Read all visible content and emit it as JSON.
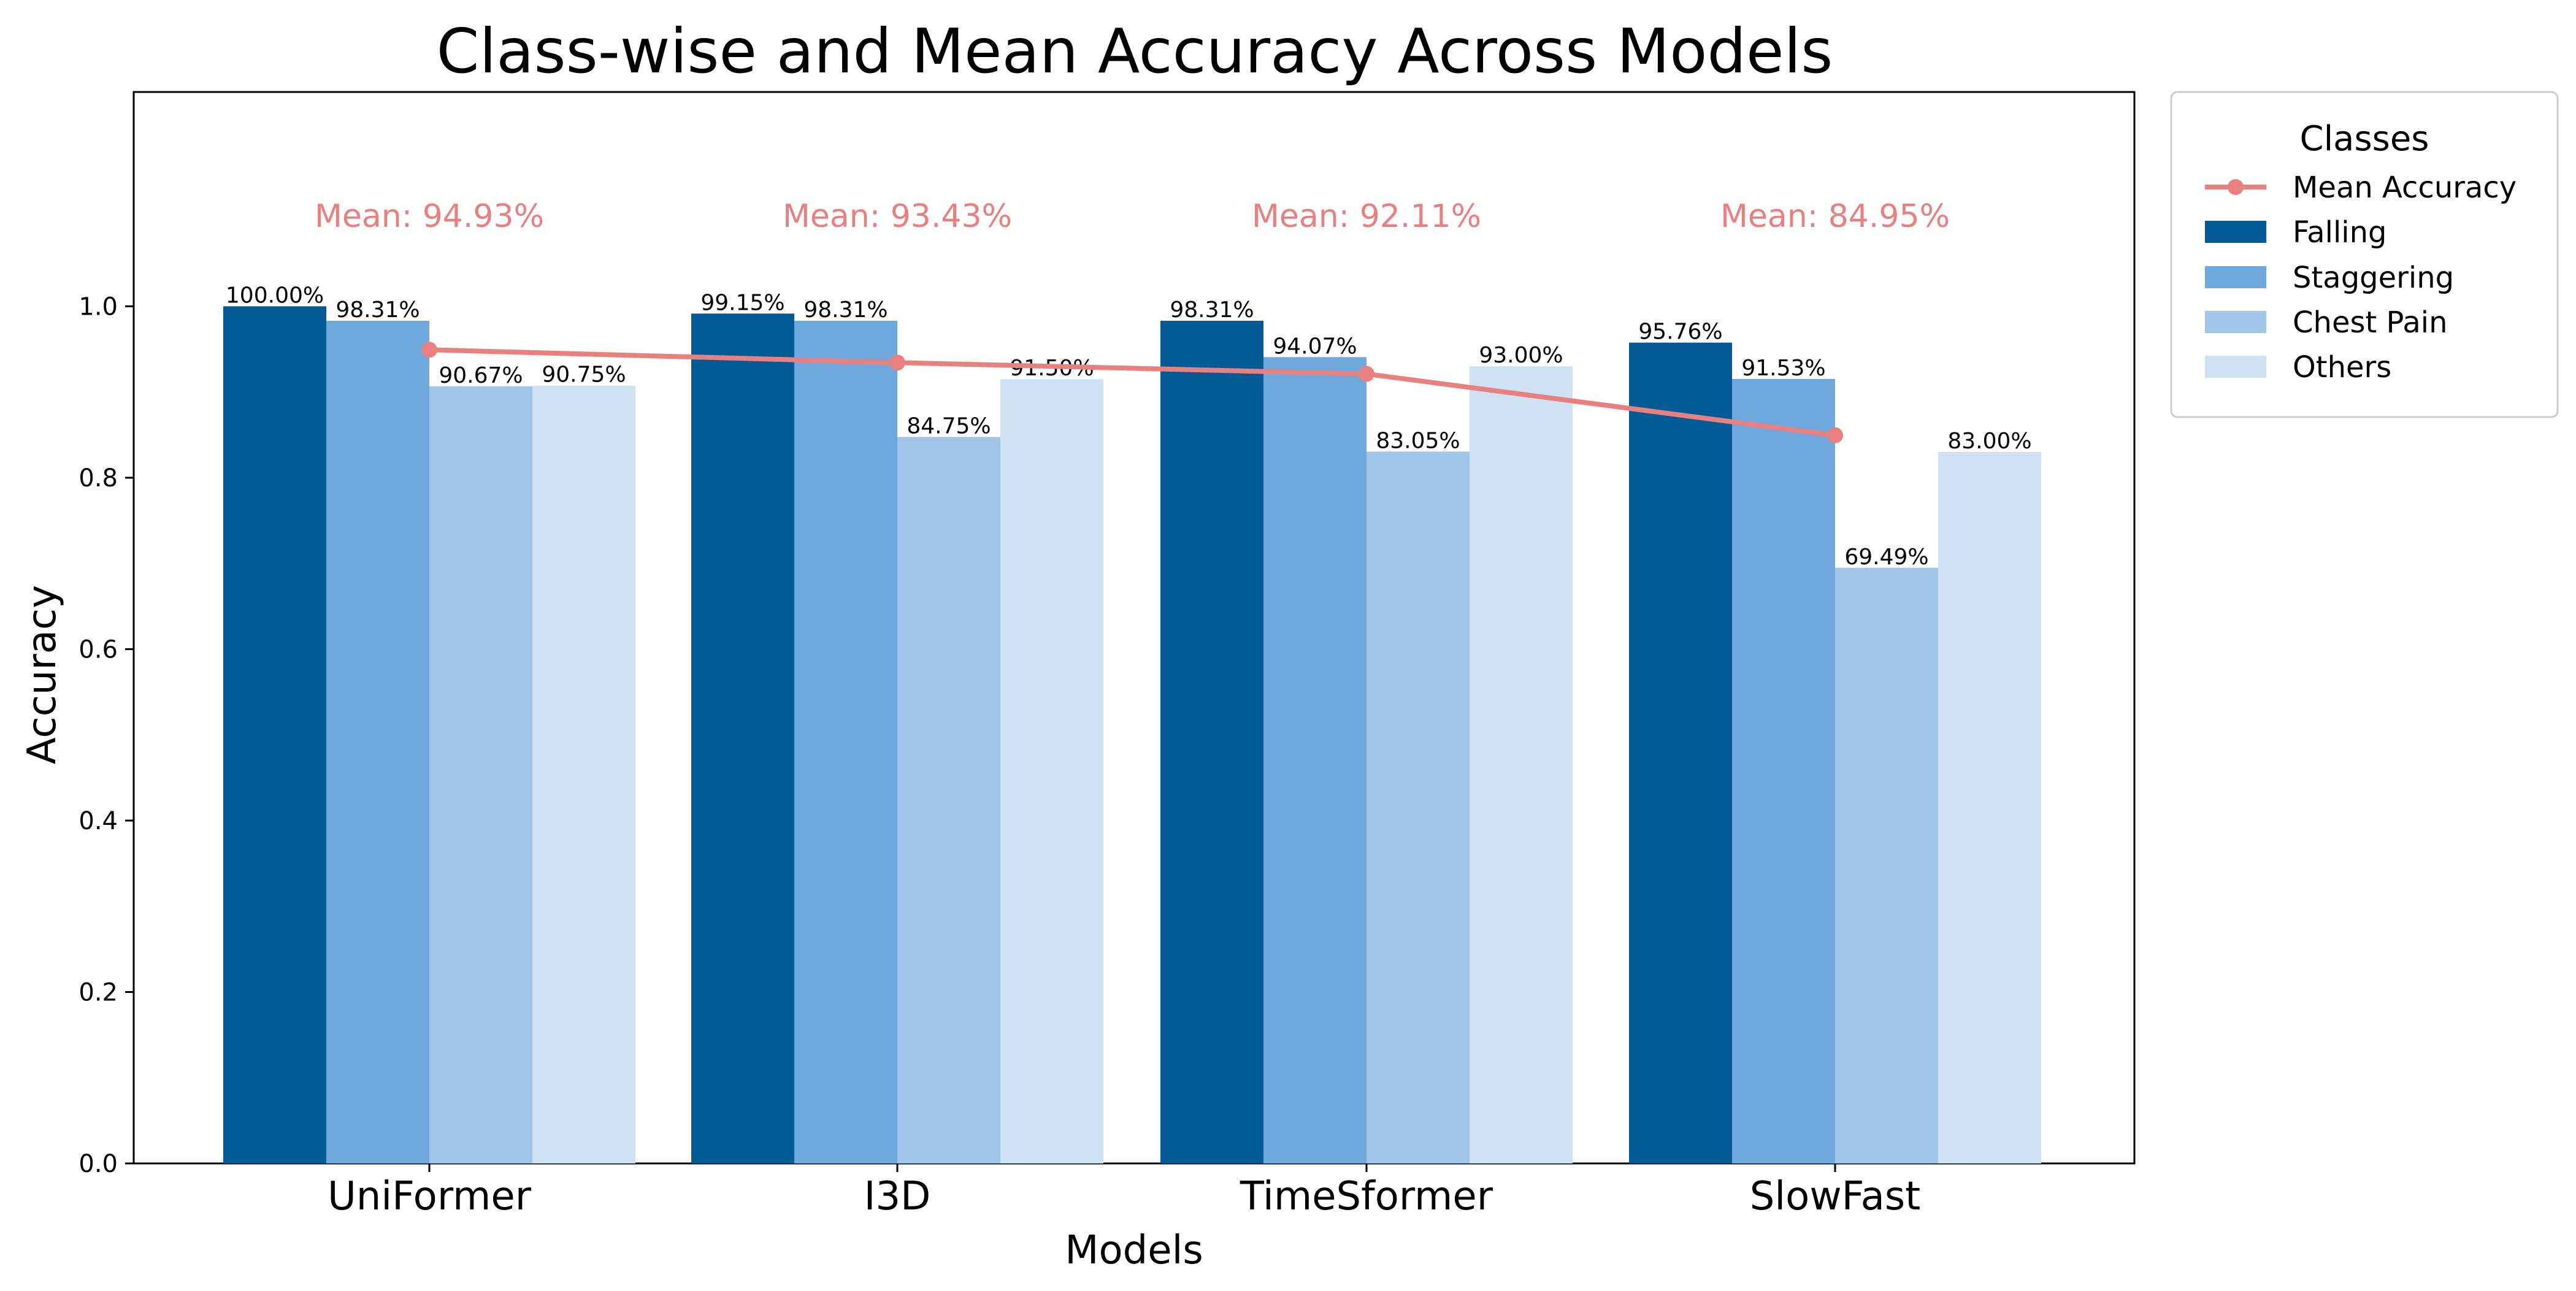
{
  "chart_data": {
    "type": "bar",
    "title": "Class-wise and Mean Accuracy Across Models",
    "xlabel": "Models",
    "ylabel": "Accuracy",
    "ylim": [
      0,
      1.25
    ],
    "yticks": [
      0.0,
      0.2,
      0.4,
      0.6,
      0.8,
      1.0
    ],
    "ytick_labels": [
      "0.0",
      "0.2",
      "0.4",
      "0.6",
      "0.8",
      "1.0"
    ],
    "grid": false,
    "categories": [
      "UniFormer",
      "I3D",
      "TimeSformer",
      "SlowFast"
    ],
    "series": [
      {
        "name": "Falling",
        "color": "#035b96",
        "values": [
          1.0,
          0.9915,
          0.9831,
          0.9576
        ],
        "labels": [
          "100.00%",
          "99.15%",
          "98.31%",
          "95.76%"
        ]
      },
      {
        "name": "Staggering",
        "color": "#6fa8dc",
        "values": [
          0.9831,
          0.9831,
          0.9407,
          0.9153
        ],
        "labels": [
          "98.31%",
          "98.31%",
          "94.07%",
          "91.53%"
        ]
      },
      {
        "name": "Chest Pain",
        "color": "#9fc5e8",
        "values": [
          0.9067,
          0.8475,
          0.8305,
          0.6949
        ],
        "labels": [
          "90.67%",
          "84.75%",
          "83.05%",
          "69.49%"
        ]
      },
      {
        "name": "Others",
        "color": "#cfe2f3",
        "values": [
          0.9075,
          0.915,
          0.93,
          0.83
        ],
        "labels": [
          "90.75%",
          "91.50%",
          "93.00%",
          "83.00%"
        ]
      }
    ],
    "mean": {
      "name": "Mean Accuracy",
      "color": "#e88080",
      "values": [
        0.9493,
        0.9343,
        0.9211,
        0.8495
      ],
      "labels": [
        "Mean: 94.93%",
        "Mean: 93.43%",
        "Mean: 92.11%",
        "Mean: 84.95%"
      ]
    },
    "legend": {
      "title": "Classes",
      "placement": "outside-top-right",
      "entries": [
        "Mean Accuracy",
        "Falling",
        "Staggering",
        "Chest Pain",
        "Others"
      ]
    }
  }
}
